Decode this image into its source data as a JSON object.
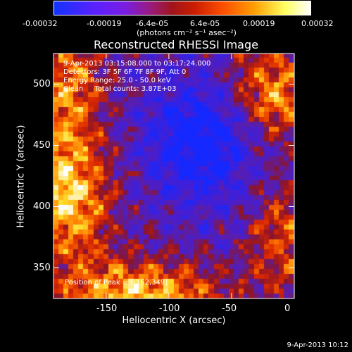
{
  "window": {
    "title": "Reconstructed RHESSI Image",
    "footer_date": "9-Apr-2013 10:12"
  },
  "colorbar": {
    "tick_labels": [
      "-0.00032",
      "-0.00019",
      "-6.4e-05",
      "6.4e-05",
      "0.00019",
      "0.00032"
    ],
    "units_label": "(photons cm⁻² s⁻¹ asec⁻²)",
    "colors": [
      "#0a1bff",
      "#7d1fe8",
      "#9b1a2a",
      "#e53a00",
      "#ff9a00",
      "#ffff7a",
      "#ffffff"
    ]
  },
  "plot": {
    "xlabel": "Heliocentric X (arcsec)",
    "ylabel": "Heliocentric Y (arcsec)",
    "xlim": [
      -192,
      0
    ],
    "ylim": [
      325,
      525
    ],
    "xticks": [
      -150,
      -100,
      -50,
      0
    ],
    "yticks": [
      350,
      400,
      450,
      500
    ],
    "info_lines": [
      "9-Apr-2013 03:15:08.000 to 03:17:24.000",
      "Detectors: 3F 5F 6F 7F 8F 9F, Att 0",
      "Energy Range: 25.0 - 50.0 keV",
      "Clean     Total counts: 3.87E+03"
    ],
    "peak_label": "Position of Peak = [-162,349]"
  }
}
